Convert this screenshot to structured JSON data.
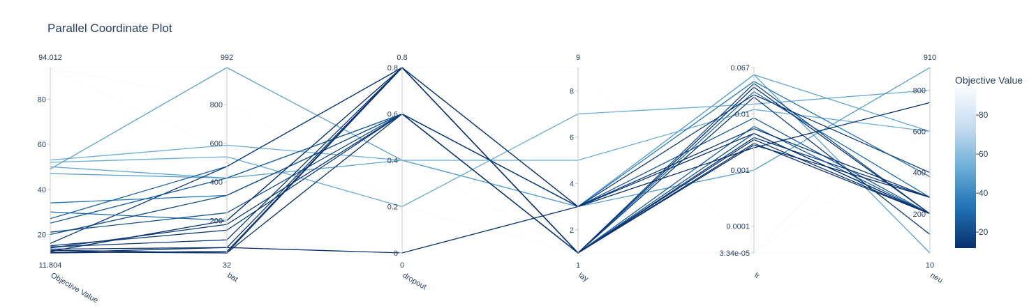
{
  "chart_data": {
    "type": "parallel_coordinates",
    "title": "Parallel Coordinate Plot",
    "colorscale": [
      "#08306b",
      "#2171b5",
      "#6baed6",
      "#c6dbef",
      "#f7fbff"
    ],
    "colorbar": {
      "title": "Objective Value",
      "ticks": [
        "80",
        "60",
        "40",
        "20"
      ],
      "tick_values": [
        80,
        60,
        40,
        20
      ],
      "range": [
        11.804,
        94.012
      ]
    },
    "dimensions": [
      {
        "key": "obj",
        "label": "Objective Value",
        "range_min": "11.804",
        "range_max": "94.012",
        "scale": "linear",
        "min": 11.804,
        "max": 94.012,
        "ticks": [
          {
            "v": 20,
            "t": "20"
          },
          {
            "v": 40,
            "t": "40"
          },
          {
            "v": 60,
            "t": "60"
          },
          {
            "v": 80,
            "t": "80"
          }
        ]
      },
      {
        "key": "bat",
        "label": "bat",
        "range_min": "32",
        "range_max": "992",
        "scale": "linear",
        "min": 32,
        "max": 992,
        "ticks": [
          {
            "v": 200,
            "t": "200"
          },
          {
            "v": 400,
            "t": "400"
          },
          {
            "v": 600,
            "t": "600"
          },
          {
            "v": 800,
            "t": "800"
          }
        ]
      },
      {
        "key": "dropout",
        "label": "dropout",
        "range_min": "0",
        "range_max": "0.8",
        "scale": "linear",
        "min": 0,
        "max": 0.8,
        "ticks": [
          {
            "v": 0,
            "t": "0"
          },
          {
            "v": 0.2,
            "t": "0.2"
          },
          {
            "v": 0.4,
            "t": "0.4"
          },
          {
            "v": 0.6,
            "t": "0.6"
          },
          {
            "v": 0.8,
            "t": "0.8"
          }
        ]
      },
      {
        "key": "lay",
        "label": "lay",
        "range_min": "1",
        "range_max": "9",
        "scale": "linear",
        "min": 1,
        "max": 9,
        "ticks": [
          {
            "v": 2,
            "t": "2"
          },
          {
            "v": 4,
            "t": "4"
          },
          {
            "v": 6,
            "t": "6"
          },
          {
            "v": 8,
            "t": "8"
          }
        ]
      },
      {
        "key": "lr",
        "label": "lr",
        "range_min": "",
        "range_max": "",
        "scale": "log",
        "min": 3.34e-05,
        "max": 0.067,
        "ticks": [
          {
            "v": 3.34e-05,
            "t": "3.34e-05"
          },
          {
            "v": 0.0001,
            "t": "0.0001"
          },
          {
            "v": 0.001,
            "t": "0.001"
          },
          {
            "v": 0.01,
            "t": "0.01"
          },
          {
            "v": 0.067,
            "t": "0.067"
          }
        ]
      },
      {
        "key": "neu",
        "label": "neu",
        "range_min": "10",
        "range_max": "910",
        "scale": "linear",
        "min": 10,
        "max": 910,
        "ticks": [
          {
            "v": 200,
            "t": "200"
          },
          {
            "v": 400,
            "t": "400"
          },
          {
            "v": 600,
            "t": "600"
          },
          {
            "v": 800,
            "t": "800"
          }
        ]
      }
    ],
    "trials": [
      [
        94.0,
        992,
        0.8,
        9,
        3.34e-05,
        10
      ],
      [
        93.8,
        820,
        0.2,
        1,
        3.34e-05,
        600
      ],
      [
        93.5,
        560,
        0.4,
        1,
        3.34e-05,
        910
      ],
      [
        53.0,
        590,
        0.4,
        5,
        0.012,
        600
      ],
      [
        52.0,
        530,
        0.2,
        7,
        0.015,
        800
      ],
      [
        50.0,
        420,
        0.4,
        3,
        0.05,
        600
      ],
      [
        49.0,
        992,
        0.4,
        3,
        0.05,
        10
      ],
      [
        47.0,
        420,
        0.6,
        3,
        0.001,
        910
      ],
      [
        34.0,
        330,
        0.6,
        3,
        0.038,
        380
      ],
      [
        30.0,
        200,
        0.8,
        1,
        0.025,
        280
      ],
      [
        27.0,
        480,
        0.8,
        1,
        0.006,
        200
      ],
      [
        25.0,
        420,
        0.6,
        3,
        0.0085,
        200
      ],
      [
        21.0,
        240,
        0.6,
        1,
        0.0045,
        200
      ],
      [
        20.0,
        330,
        0.6,
        1,
        0.035,
        200
      ],
      [
        16.0,
        480,
        0.8,
        1,
        0.0038,
        280
      ],
      [
        15.0,
        150,
        0.6,
        3,
        0.022,
        400
      ],
      [
        14.5,
        100,
        0.8,
        3,
        0.0055,
        280
      ],
      [
        14.0,
        180,
        0.6,
        1,
        0.02,
        100
      ],
      [
        13.5,
        60,
        0.8,
        1,
        0.003,
        200
      ],
      [
        13.0,
        32,
        0.8,
        3,
        0.0045,
        200
      ],
      [
        12.5,
        200,
        0.8,
        1,
        0.03,
        200
      ],
      [
        12.2,
        32,
        0.6,
        1,
        0.0035,
        200
      ],
      [
        12.0,
        60,
        0.0,
        3,
        0.0025,
        740
      ],
      [
        11.804,
        40,
        0.8,
        1,
        0.0028,
        280
      ]
    ]
  }
}
